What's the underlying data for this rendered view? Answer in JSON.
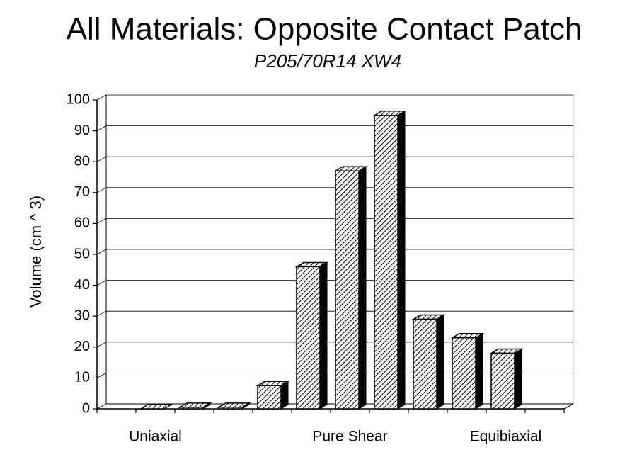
{
  "chart_data": {
    "type": "bar3d",
    "title": "All Materials:  Opposite Contact Patch",
    "subtitle": "P205/70R14 XW4",
    "y_label": "Volume (cm ^ 3)",
    "categories": [
      null,
      "Uniaxial",
      null,
      null,
      null,
      null,
      "Pure Shear",
      null,
      null,
      null,
      "Equibiaxial",
      null
    ],
    "values": [
      null,
      0,
      0.5,
      0.5,
      7.5,
      46,
      77,
      95,
      29,
      23,
      18,
      null
    ],
    "color": "#000000",
    "ylim": [
      0,
      100
    ],
    "yticks": [
      0,
      10,
      20,
      30,
      40,
      50,
      60,
      70,
      80,
      90,
      100
    ],
    "grid": true
  }
}
